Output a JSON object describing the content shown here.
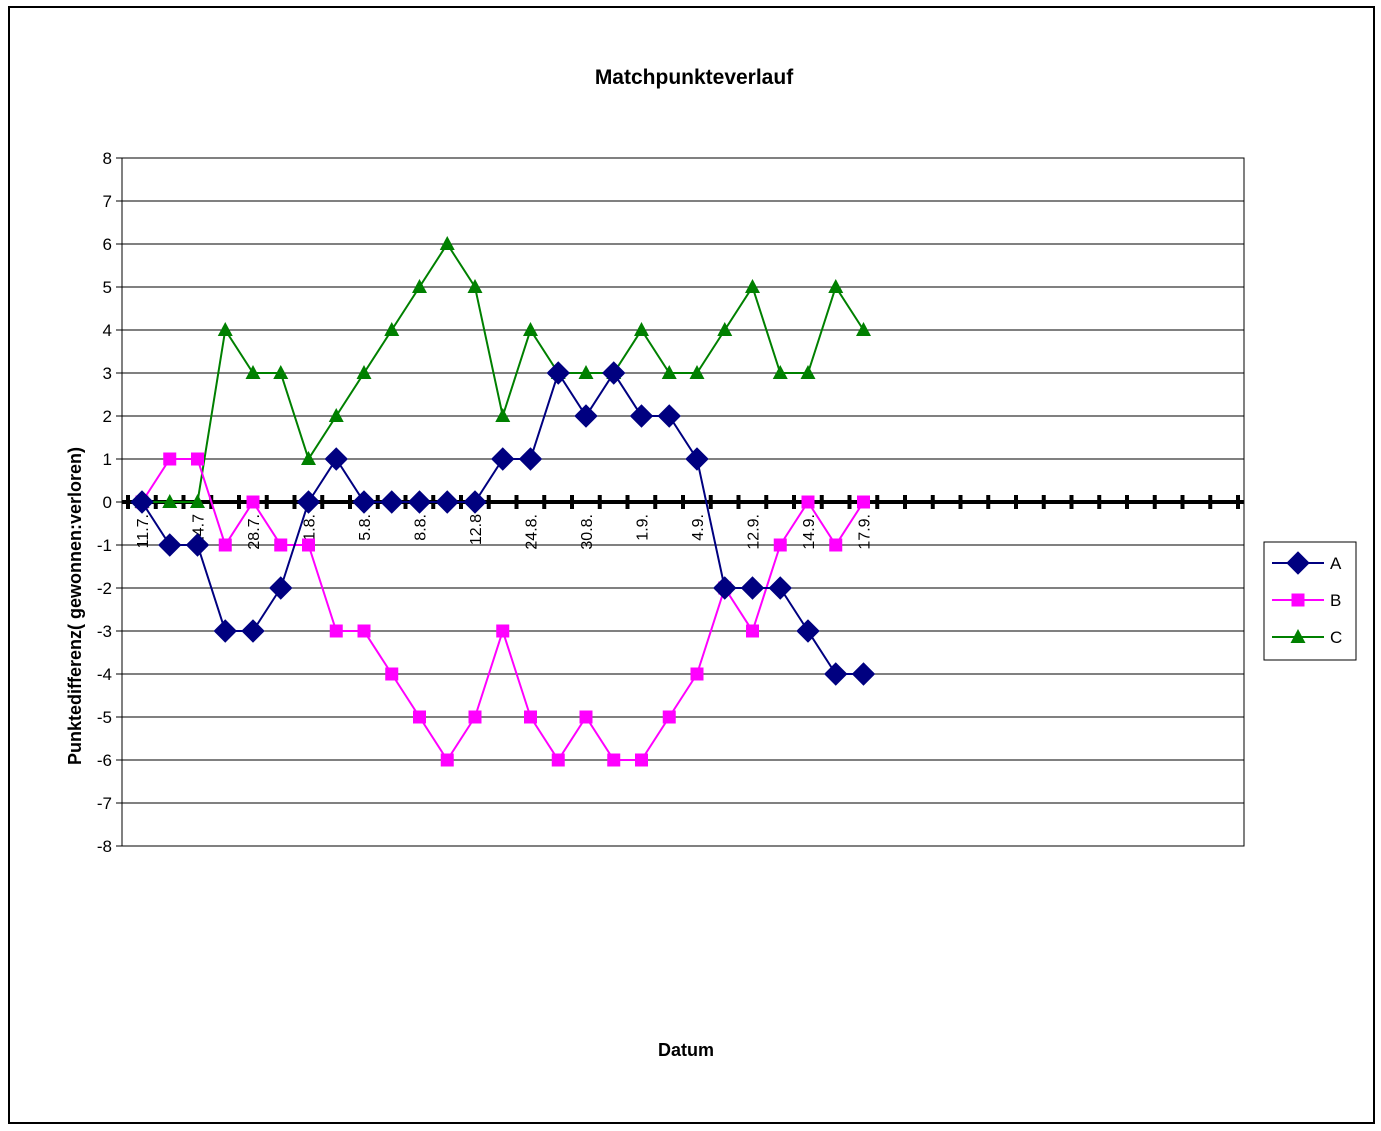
{
  "chart_data": {
    "type": "line",
    "title": "Matchpunkteverlauf",
    "xlabel": "Datum",
    "ylabel": "Punktedifferenz( gewonnen:verloren)",
    "ylim": [
      -8,
      8
    ],
    "yticks": [
      "8",
      "7",
      "6",
      "5",
      "4",
      "3",
      "2",
      "1",
      "0",
      "-1",
      "-2",
      "-3",
      "-4",
      "-5",
      "-6",
      "-7",
      "-8"
    ],
    "grid": true,
    "legend_position": "right",
    "category_count": 40,
    "x_tick_labels": [
      {
        "index": 0,
        "label": "11.7."
      },
      {
        "index": 2,
        "label": "24.7"
      },
      {
        "index": 4,
        "label": "28.7."
      },
      {
        "index": 6,
        "label": "1.8."
      },
      {
        "index": 8,
        "label": "5.8."
      },
      {
        "index": 10,
        "label": "8.8."
      },
      {
        "index": 12,
        "label": "12.8"
      },
      {
        "index": 14,
        "label": "24.8."
      },
      {
        "index": 16,
        "label": "30.8."
      },
      {
        "index": 18,
        "label": "1.9."
      },
      {
        "index": 20,
        "label": "4.9."
      },
      {
        "index": 22,
        "label": "12.9."
      },
      {
        "index": 24,
        "label": "14.9."
      },
      {
        "index": 26,
        "label": "17.9."
      }
    ],
    "series": [
      {
        "name": "A",
        "color": "#000080",
        "marker": "diamond",
        "values": [
          0,
          -1,
          -1,
          -3,
          -3,
          -2,
          0,
          1,
          0,
          0,
          0,
          0,
          0,
          1,
          1,
          3,
          2,
          3,
          2,
          2,
          1,
          -2,
          -2,
          -2,
          -3,
          -4,
          -4
        ]
      },
      {
        "name": "B",
        "color": "#FF00FF",
        "marker": "square",
        "values": [
          0,
          1,
          1,
          -1,
          0,
          -1,
          -1,
          -3,
          -3,
          -4,
          -5,
          -6,
          -5,
          -3,
          -5,
          -6,
          -5,
          -6,
          -6,
          -5,
          -4,
          -2,
          -3,
          -1,
          0,
          -1,
          0
        ]
      },
      {
        "name": "C",
        "color": "#008000",
        "marker": "triangle",
        "values": [
          0,
          0,
          0,
          4,
          3,
          3,
          1,
          2,
          3,
          4,
          5,
          6,
          5,
          2,
          4,
          3,
          3,
          3,
          4,
          3,
          3,
          4,
          5,
          3,
          3,
          5,
          4
        ]
      }
    ]
  }
}
